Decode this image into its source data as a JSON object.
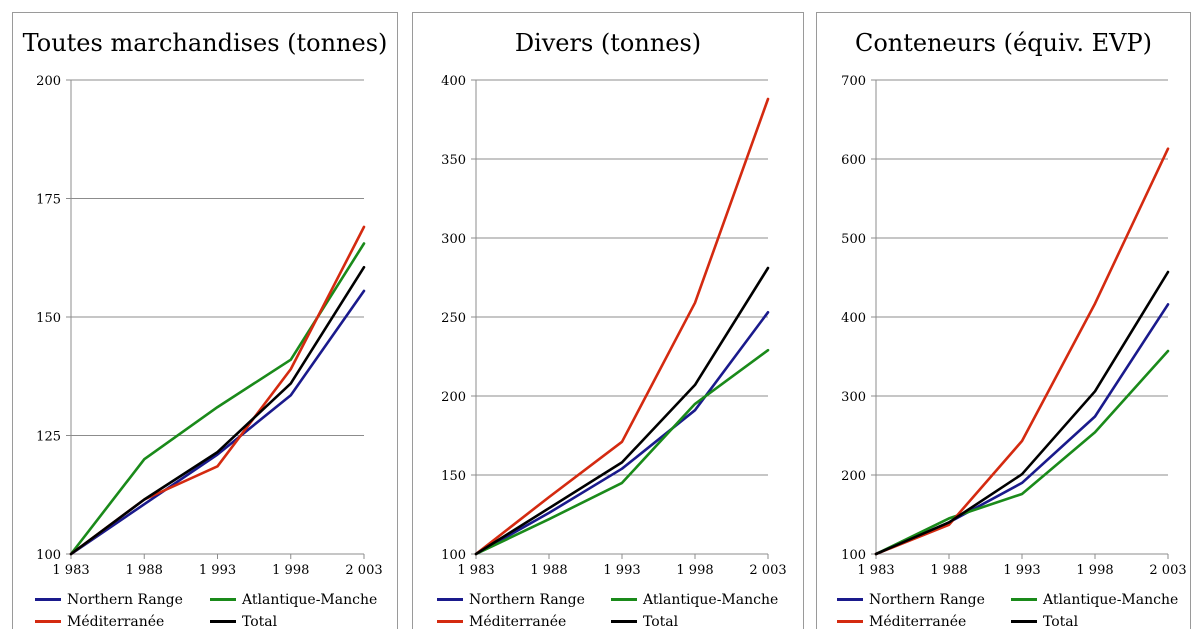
{
  "colors": {
    "northern_range": "#1a1a8c",
    "atlantique_manche": "#1a8a1a",
    "mediterranee": "#d42a10",
    "total": "#000000"
  },
  "chart_data": [
    {
      "type": "line",
      "title": "Toutes marchandises (tonnes)",
      "x": [
        "1 983",
        "1 988",
        "1 993",
        "1 998",
        "2 003"
      ],
      "ylim": [
        100,
        200
      ],
      "yticks": [
        "100",
        "125",
        "150",
        "175",
        "200"
      ],
      "ytick_values": [
        100,
        125,
        150,
        175,
        200
      ],
      "grid": true,
      "legend_position": "bottom",
      "series": [
        {
          "name": "Northern Range",
          "color_key": "northern_range",
          "values": [
            100,
            110.5,
            121,
            133.5,
            155.5
          ]
        },
        {
          "name": "Atlantique-Manche",
          "color_key": "atlantique_manche",
          "values": [
            100,
            120,
            131,
            141,
            165.5
          ]
        },
        {
          "name": "Méditerranée",
          "color_key": "mediterranee",
          "values": [
            100,
            111.5,
            118.5,
            139,
            169
          ]
        },
        {
          "name": "Total",
          "color_key": "total",
          "values": [
            100,
            111.5,
            121.5,
            136,
            160.5
          ]
        }
      ]
    },
    {
      "type": "line",
      "title": "Divers (tonnes)",
      "x": [
        "1 983",
        "1 988",
        "1 993",
        "1 998",
        "2 003"
      ],
      "ylim": [
        100,
        400
      ],
      "yticks": [
        "100",
        "150",
        "200",
        "250",
        "300",
        "350",
        "400"
      ],
      "ytick_values": [
        100,
        150,
        200,
        250,
        300,
        350,
        400
      ],
      "grid": true,
      "legend_position": "bottom",
      "series": [
        {
          "name": "Northern Range",
          "color_key": "northern_range",
          "values": [
            100,
            126,
            154,
            191,
            253
          ]
        },
        {
          "name": "Atlantique-Manche",
          "color_key": "atlantique_manche",
          "values": [
            100,
            122,
            145,
            195,
            229
          ]
        },
        {
          "name": "Méditerranée",
          "color_key": "mediterranee",
          "values": [
            100,
            136,
            171,
            259,
            388
          ]
        },
        {
          "name": "Total",
          "color_key": "total",
          "values": [
            100,
            129,
            158,
            207,
            281
          ]
        }
      ]
    },
    {
      "type": "line",
      "title": "Conteneurs (équiv. EVP)",
      "x": [
        "1 983",
        "1 988",
        "1 993",
        "1 998",
        "2 003"
      ],
      "ylim": [
        100,
        700
      ],
      "yticks": [
        "100",
        "200",
        "300",
        "400",
        "500",
        "600",
        "700"
      ],
      "ytick_values": [
        100,
        200,
        300,
        400,
        500,
        600,
        700
      ],
      "grid": true,
      "legend_position": "bottom",
      "series": [
        {
          "name": "Northern Range",
          "color_key": "northern_range",
          "values": [
            100,
            140,
            190,
            274,
            416
          ]
        },
        {
          "name": "Atlantique-Manche",
          "color_key": "atlantique_manche",
          "values": [
            100,
            145,
            176,
            254,
            357
          ]
        },
        {
          "name": "Méditerranée",
          "color_key": "mediterranee",
          "values": [
            100,
            137,
            243,
            417,
            613
          ]
        },
        {
          "name": "Total",
          "color_key": "total",
          "values": [
            100,
            140,
            201,
            306,
            457
          ]
        }
      ]
    }
  ],
  "legend": {
    "northern_range": "Northern Range",
    "atlantique_manche": "Atlantique-Manche",
    "mediterranee": "Méditerranée",
    "total": "Total"
  }
}
